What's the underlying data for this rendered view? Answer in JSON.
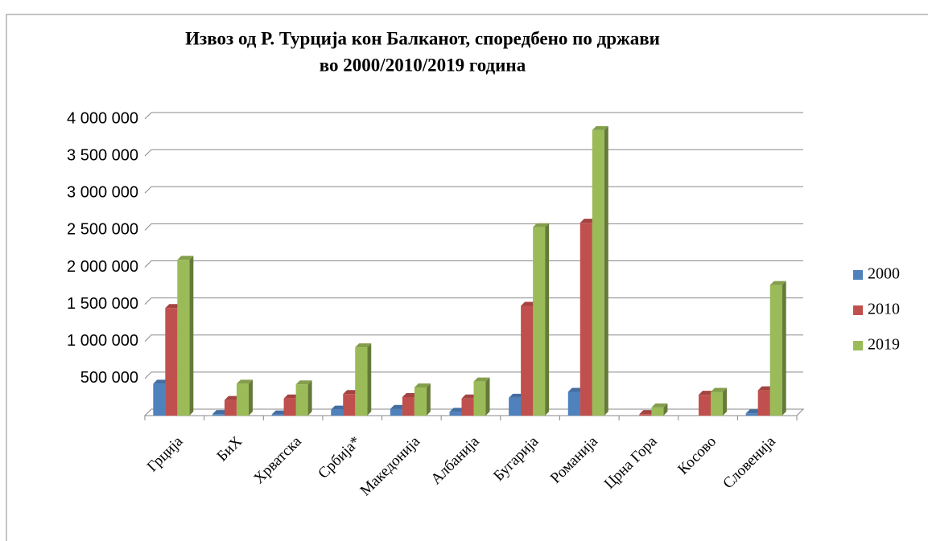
{
  "chart_data": {
    "type": "bar",
    "title": [
      "Извоз од Р. Турција кон Балканот, споредбено по држави",
      "во 2000/2010/2019 година"
    ],
    "categories": [
      "Грција",
      "БиХ",
      "Хрватска",
      "Србија*",
      "Македонија",
      "Албанија",
      "Бугарија",
      "Романија",
      "Црна Гора",
      "Косово",
      "Словенија"
    ],
    "series": [
      {
        "name": "2000",
        "color": "#4f81bd",
        "values": [
          430000,
          20000,
          15000,
          80000,
          90000,
          50000,
          240000,
          320000,
          null,
          null,
          30000
        ]
      },
      {
        "name": "2010",
        "color": "#c0504d",
        "values": [
          1450000,
          210000,
          230000,
          290000,
          250000,
          230000,
          1480000,
          2600000,
          20000,
          280000,
          340000
        ]
      },
      {
        "name": "2019",
        "color": "#9bbb59",
        "values": [
          2100000,
          430000,
          420000,
          920000,
          380000,
          460000,
          2540000,
          3850000,
          110000,
          320000,
          1760000
        ]
      }
    ],
    "ylim": [
      0,
      4000000
    ],
    "yticks": [
      {
        "value": 500000,
        "label": "500 000"
      },
      {
        "value": 1000000,
        "label": "1 000 000"
      },
      {
        "value": 1500000,
        "label": "1 500 000"
      },
      {
        "value": 2000000,
        "label": "2 000 000"
      },
      {
        "value": 2500000,
        "label": "2 500 000"
      },
      {
        "value": 3000000,
        "label": "3 000 000"
      },
      {
        "value": 3500000,
        "label": "3 500 000"
      },
      {
        "value": 4000000,
        "label": "4 000 000"
      }
    ],
    "grid": true,
    "legend": "right"
  }
}
